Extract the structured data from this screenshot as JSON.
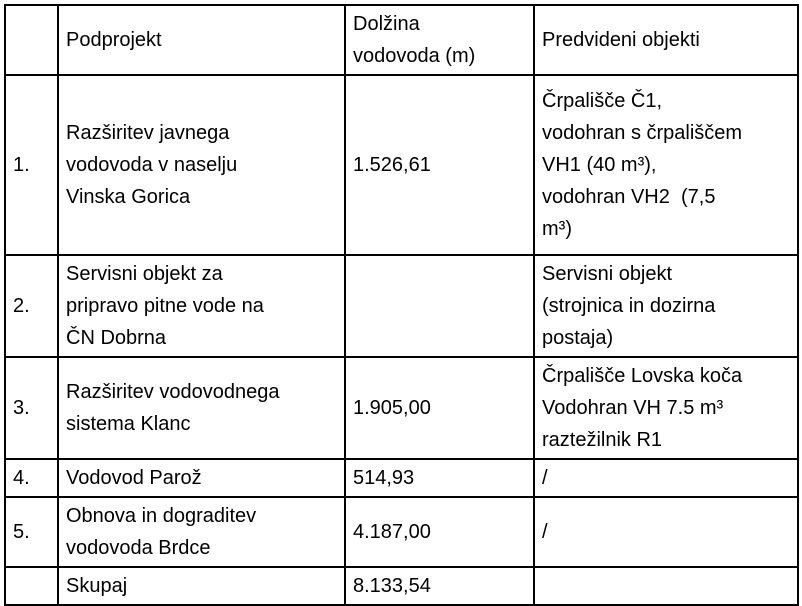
{
  "table": {
    "headers": {
      "num": "",
      "podprojekt": "Podprojekt",
      "dolzina": "Dolžina\nvodovoda (m)",
      "objekti": "Predvideni objekti"
    },
    "rows": [
      {
        "num": "1.",
        "podprojekt": "Razširitev javnega\nvodovoda v naselju\nVinska Gorica",
        "dolzina": "1.526,61",
        "objekti": "Črpališče Č1,\nvodohran s črpališčem\nVH1 (40 m³),\nvodohran VH2  (7,5\nm³)"
      },
      {
        "num": "2.",
        "podprojekt": "Servisni objekt za\npripravo pitne vode na\nČN Dobrna",
        "dolzina": "",
        "objekti": "Servisni objekt\n(strojnica in dozirna\npostaja)"
      },
      {
        "num": "3.",
        "podprojekt": "Razširitev vodovodnega\nsistema Klanc",
        "dolzina": "1.905,00",
        "objekti": "Črpališče Lovska koča\nVodohran VH 7.5 m³\nraztežilnik R1"
      },
      {
        "num": "4.",
        "podprojekt": "Vodovod Parož",
        "dolzina": "514,93",
        "objekti": "/"
      },
      {
        "num": "5.",
        "podprojekt": "Obnova in dograditev\nvodovoda Brdce",
        "dolzina": "4.187,00",
        "objekti": "/"
      }
    ],
    "footer": {
      "num": "",
      "label": "Skupaj",
      "total": "8.133,54",
      "objekti": ""
    },
    "colors": {
      "border": "#000000",
      "text": "#000000",
      "background": "#ffffff"
    }
  }
}
